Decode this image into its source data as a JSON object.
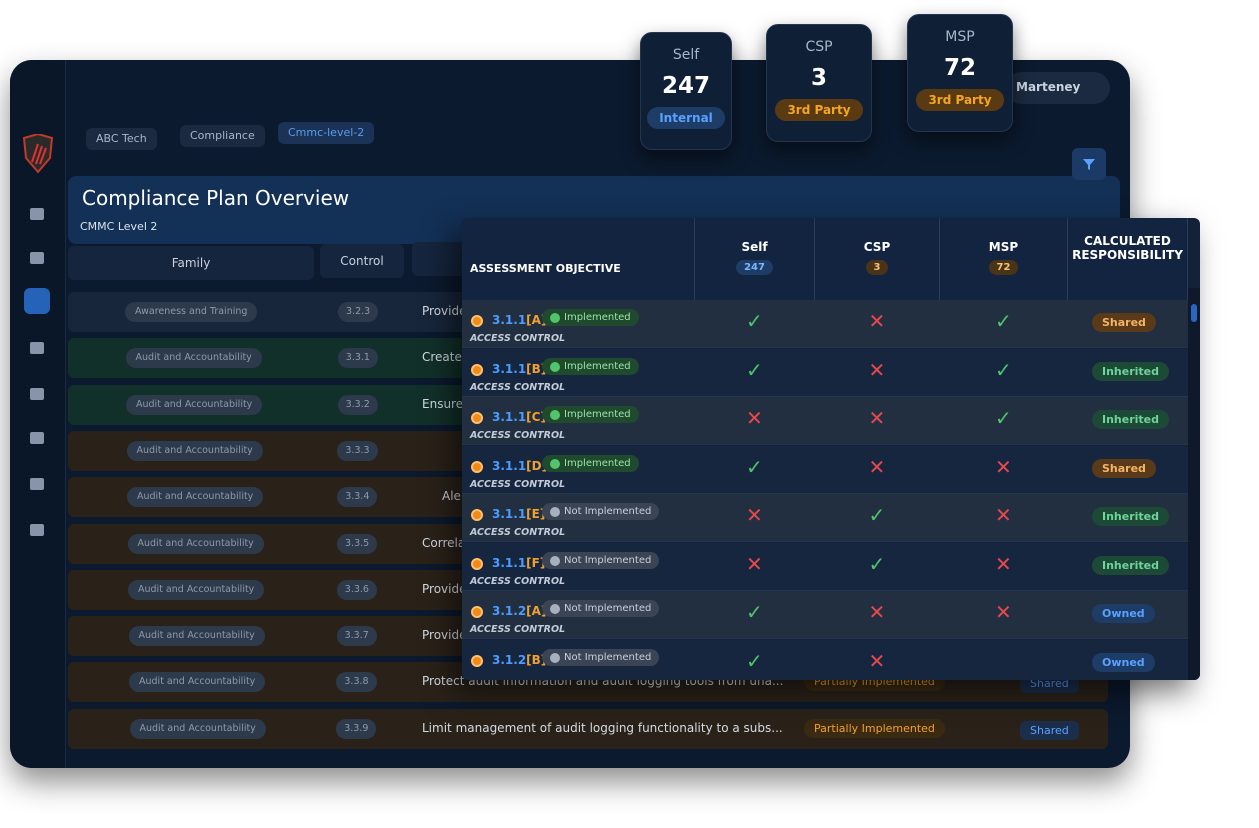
{
  "stat_cards": [
    {
      "label": "Self",
      "value": 247,
      "badge": "Internal"
    },
    {
      "label": "CSP",
      "value": 3,
      "badge": "3rd Party"
    },
    {
      "label": "MSP",
      "value": 72,
      "badge": "3rd Party"
    }
  ],
  "user": "Marteney",
  "breadcrumb": [
    "ABC Tech",
    "Compliance",
    "Cmmc-level-2"
  ],
  "page": {
    "title": "Compliance Plan Overview",
    "subtitle": "CMMC Level 2"
  },
  "background_table": {
    "headers": [
      "Family",
      "Control"
    ],
    "rows": [
      {
        "family": "Awareness and Training",
        "control": "3.2.3",
        "description": "Provide"
      },
      {
        "family": "Audit and Accountability",
        "control": "3.3.1",
        "description": "Create"
      },
      {
        "family": "Audit and Accountability",
        "control": "3.3.2",
        "description": "Ensure"
      },
      {
        "family": "Audit and Accountability",
        "control": "3.3.3"
      },
      {
        "family": "Audit and Accountability",
        "control": "3.3.4",
        "description": "Ale"
      },
      {
        "family": "Audit and Accountability",
        "control": "3.3.5",
        "description": "Correla"
      },
      {
        "family": "Audit and Accountability",
        "control": "3.3.6",
        "description": "Provide"
      },
      {
        "family": "Audit and Accountability",
        "control": "3.3.7",
        "description": "Provide"
      },
      {
        "family": "Audit and Accountability",
        "control": "3.3.8",
        "description": "Protect audit information and audit logging tools from una...",
        "status": "Partially Implemented",
        "responsibility": "Shared"
      },
      {
        "family": "Audit and Accountability",
        "control": "3.3.9",
        "description": "Limit management of audit logging functionality to a subs...",
        "status": "Partially Implemented",
        "responsibility": "Shared"
      }
    ]
  },
  "objective_table": {
    "headers": [
      {
        "label": "ASSESSMENT OBJECTIVE"
      },
      {
        "label": "Self",
        "count": 247
      },
      {
        "label": "CSP",
        "count": 3
      },
      {
        "label": "MSP",
        "count": 72
      },
      {
        "label": "CALCULATED RESPONSIBILITY"
      }
    ],
    "rows": [
      {
        "control": "3.1.1",
        "letter": "[A]",
        "status": "Implemented",
        "family": "ACCESS CONTROL",
        "self": true,
        "csp": false,
        "msp": true,
        "responsibility": "Shared"
      },
      {
        "control": "3.1.1",
        "letter": "[B]",
        "status": "Implemented",
        "family": "ACCESS CONTROL",
        "self": true,
        "csp": false,
        "msp": true,
        "responsibility": "Inherited"
      },
      {
        "control": "3.1.1",
        "letter": "[C]",
        "status": "Implemented",
        "family": "ACCESS CONTROL",
        "self": false,
        "csp": false,
        "msp": true,
        "responsibility": "Inherited"
      },
      {
        "control": "3.1.1",
        "letter": "[D]",
        "status": "Implemented",
        "family": "ACCESS CONTROL",
        "self": true,
        "csp": false,
        "msp": false,
        "responsibility": "Shared"
      },
      {
        "control": "3.1.1",
        "letter": "[E]",
        "status": "Not Implemented",
        "family": "ACCESS CONTROL",
        "self": false,
        "csp": true,
        "msp": false,
        "responsibility": "Inherited"
      },
      {
        "control": "3.1.1",
        "letter": "[F]",
        "status": "Not Implemented",
        "family": "ACCESS CONTROL",
        "self": false,
        "csp": true,
        "msp": false,
        "responsibility": "Inherited"
      },
      {
        "control": "3.1.2",
        "letter": "[A]",
        "status": "Not Implemented",
        "family": "ACCESS CONTROL",
        "self": true,
        "csp": false,
        "msp": false,
        "responsibility": "Owned"
      },
      {
        "control": "3.1.2",
        "letter": "[B]",
        "status": "Not Implemented",
        "self": true,
        "csp": false,
        "responsibility": "Owned"
      }
    ]
  }
}
